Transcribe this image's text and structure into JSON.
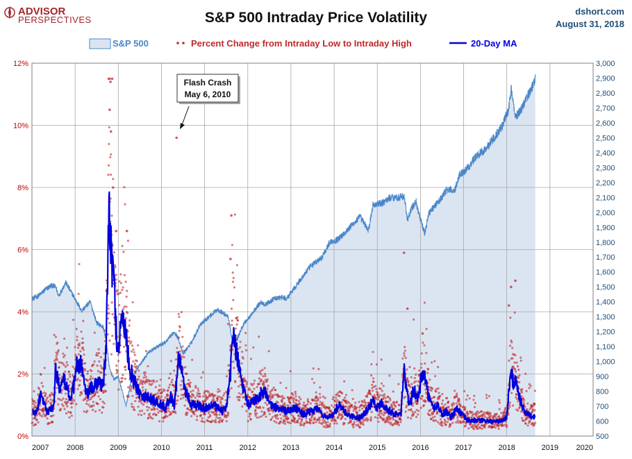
{
  "logo": {
    "main": "ADVISOR",
    "sub": "PERSPECTIVES"
  },
  "source": {
    "site": "dshort.com",
    "date": "August 31, 2018"
  },
  "colors": {
    "sp500_fill": "#dbe5f2",
    "sp500_line": "#4a86c8",
    "scatter": "#c0282b",
    "ma": "#0000dd",
    "grid": "#a6a6a6"
  },
  "chart_data": {
    "type": "line",
    "title": "S&P 500 Intraday Price Volatility",
    "legend": {
      "placement": "top",
      "entries": [
        "S&P 500",
        "Percent Change from Intraday Low to Intraday High",
        "20-Day MA"
      ]
    },
    "grid": true,
    "x_axis": {
      "ticks": [
        "2007",
        "2008",
        "2009",
        "2010",
        "2011",
        "2012",
        "2013",
        "2014",
        "2015",
        "2016",
        "2017",
        "2018",
        "2019",
        "2020"
      ],
      "range": [
        2007,
        2020
      ]
    },
    "y_left": {
      "ticks": [
        "0%",
        "2%",
        "4%",
        "6%",
        "8%",
        "10%",
        "12%"
      ],
      "range": [
        0,
        12
      ]
    },
    "y_right": {
      "ticks": [
        "500",
        "600",
        "700",
        "800",
        "900",
        "1,000",
        "1,100",
        "1,200",
        "1,300",
        "1,400",
        "1,500",
        "1,600",
        "1,700",
        "1,800",
        "1,900",
        "2,000",
        "2,100",
        "2,200",
        "2,300",
        "2,400",
        "2,500",
        "2,600",
        "2,700",
        "2,800",
        "2,900",
        "3,000"
      ],
      "range": [
        500,
        3000
      ]
    },
    "sp500_series": {
      "x": [
        2007.0,
        2007.15,
        2007.3,
        2007.45,
        2007.55,
        2007.62,
        2007.78,
        2007.9,
        2008.0,
        2008.15,
        2008.35,
        2008.5,
        2008.65,
        2008.72,
        2008.8,
        2008.9,
        2009.0,
        2009.1,
        2009.18,
        2009.3,
        2009.5,
        2009.7,
        2009.9,
        2010.1,
        2010.3,
        2010.4,
        2010.5,
        2010.7,
        2010.9,
        2011.1,
        2011.3,
        2011.55,
        2011.62,
        2011.75,
        2011.9,
        2012.1,
        2012.3,
        2012.4,
        2012.6,
        2012.8,
        2012.9,
        2013.1,
        2013.4,
        2013.5,
        2013.7,
        2013.9,
        2014.1,
        2014.3,
        2014.6,
        2014.8,
        2014.9,
        2015.1,
        2015.3,
        2015.5,
        2015.62,
        2015.7,
        2015.8,
        2015.9,
        2016.0,
        2016.1,
        2016.2,
        2016.5,
        2016.6,
        2016.8,
        2016.9,
        2017.1,
        2017.3,
        2017.5,
        2017.7,
        2017.9,
        2018.05,
        2018.1,
        2018.2,
        2018.35,
        2018.5,
        2018.6,
        2018.66
      ],
      "y": [
        1420,
        1440,
        1480,
        1510,
        1500,
        1440,
        1530,
        1470,
        1420,
        1340,
        1400,
        1260,
        1230,
        1150,
        950,
        880,
        900,
        790,
        700,
        880,
        980,
        1060,
        1100,
        1130,
        1200,
        1150,
        1050,
        1130,
        1250,
        1300,
        1350,
        1300,
        1170,
        1150,
        1250,
        1320,
        1400,
        1380,
        1420,
        1430,
        1420,
        1500,
        1620,
        1650,
        1690,
        1800,
        1820,
        1880,
        1970,
        1880,
        2050,
        2060,
        2100,
        2100,
        2110,
        1950,
        2030,
        2070,
        1950,
        1860,
        2000,
        2100,
        2150,
        2150,
        2250,
        2300,
        2380,
        2420,
        2500,
        2580,
        2700,
        2830,
        2640,
        2700,
        2790,
        2850,
        2900
      ]
    },
    "ma_series": {
      "x": [
        2007.0,
        2007.1,
        2007.2,
        2007.35,
        2007.5,
        2007.55,
        2007.65,
        2007.75,
        2007.9,
        2008.0,
        2008.05,
        2008.15,
        2008.25,
        2008.35,
        2008.45,
        2008.55,
        2008.65,
        2008.72,
        2008.78,
        2008.82,
        2008.86,
        2008.9,
        2008.93,
        2008.97,
        2009.0,
        2009.05,
        2009.12,
        2009.18,
        2009.25,
        2009.35,
        2009.5,
        2009.6,
        2009.75,
        2009.9,
        2010.0,
        2010.1,
        2010.2,
        2010.3,
        2010.4,
        2010.45,
        2010.55,
        2010.7,
        2010.85,
        2011.0,
        2011.2,
        2011.4,
        2011.5,
        2011.6,
        2011.65,
        2011.72,
        2011.8,
        2011.9,
        2012.0,
        2012.2,
        2012.4,
        2012.5,
        2012.7,
        2012.9,
        2013.1,
        2013.3,
        2013.5,
        2013.6,
        2013.8,
        2014.0,
        2014.1,
        2014.3,
        2014.5,
        2014.6,
        2014.8,
        2014.9,
        2015.0,
        2015.1,
        2015.2,
        2015.4,
        2015.55,
        2015.62,
        2015.68,
        2015.75,
        2015.85,
        2015.95,
        2016.05,
        2016.12,
        2016.2,
        2016.3,
        2016.4,
        2016.5,
        2016.6,
        2016.7,
        2016.85,
        2016.95,
        2017.1,
        2017.3,
        2017.5,
        2017.7,
        2017.9,
        2018.0,
        2018.05,
        2018.1,
        2018.15,
        2018.22,
        2018.3,
        2018.4,
        2018.5,
        2018.6,
        2018.66
      ],
      "y": [
        0.8,
        0.7,
        1.3,
        0.8,
        0.9,
        2.2,
        1.5,
        1.8,
        1.2,
        1.8,
        2.4,
        2.3,
        1.3,
        1.5,
        1.6,
        1.8,
        1.6,
        2.8,
        7.4,
        6.0,
        5.6,
        5.0,
        4.0,
        3.0,
        2.8,
        3.5,
        3.8,
        3.2,
        2.3,
        1.8,
        1.4,
        1.3,
        1.2,
        1.1,
        1.0,
        0.9,
        1.3,
        1.0,
        2.6,
        2.3,
        1.5,
        1.0,
        1.0,
        0.9,
        1.0,
        0.8,
        0.9,
        2.0,
        3.5,
        2.8,
        2.2,
        1.5,
        1.0,
        1.2,
        1.5,
        1.0,
        0.9,
        0.8,
        0.9,
        0.7,
        0.8,
        0.9,
        0.6,
        0.7,
        1.0,
        0.7,
        0.6,
        0.6,
        0.9,
        1.2,
        0.9,
        1.1,
        0.9,
        0.7,
        0.7,
        2.2,
        1.4,
        1.0,
        1.5,
        1.2,
        2.2,
        1.8,
        1.2,
        0.9,
        1.0,
        0.7,
        0.8,
        0.6,
        0.9,
        0.7,
        0.5,
        0.5,
        0.5,
        0.45,
        0.5,
        0.6,
        1.5,
        2.1,
        1.7,
        1.8,
        1.2,
        0.8,
        0.7,
        0.6,
        0.7
      ]
    },
    "annotations": [
      {
        "text_lines": [
          "Flash Crash",
          "May 6, 2010"
        ],
        "x": 2010.35,
        "y": 9.7
      }
    ]
  }
}
